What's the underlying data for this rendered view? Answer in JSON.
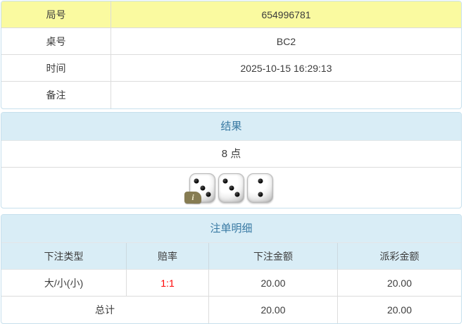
{
  "colors": {
    "highlight_bg": "#fafaa0",
    "panel_header_bg": "#d9edf6",
    "panel_header_text": "#3879a3",
    "border_blue": "#c7e0ed",
    "separator": "#dcdcdc",
    "odds_red": "#ff0000",
    "text": "#3c3c3c"
  },
  "info": {
    "rows": [
      {
        "label": "局号",
        "value": "654996781"
      },
      {
        "label": "桌号",
        "value": "BC2"
      },
      {
        "label": "时间",
        "value": "2025-10-15 16:29:13"
      },
      {
        "label": "备注",
        "value": ""
      }
    ]
  },
  "result": {
    "title": "结果",
    "points": "8 点",
    "dice": [
      3,
      3,
      2
    ],
    "info_badge": "i"
  },
  "bets": {
    "title": "注单明细",
    "columns": [
      "下注类型",
      "赔率",
      "下注金额",
      "派彩金额"
    ],
    "rows": [
      {
        "type": "大/小(小)",
        "odds": "1:1",
        "bet": "20.00",
        "payout": "20.00"
      }
    ],
    "total": {
      "label": "总计",
      "bet": "20.00",
      "payout": "20.00"
    }
  }
}
